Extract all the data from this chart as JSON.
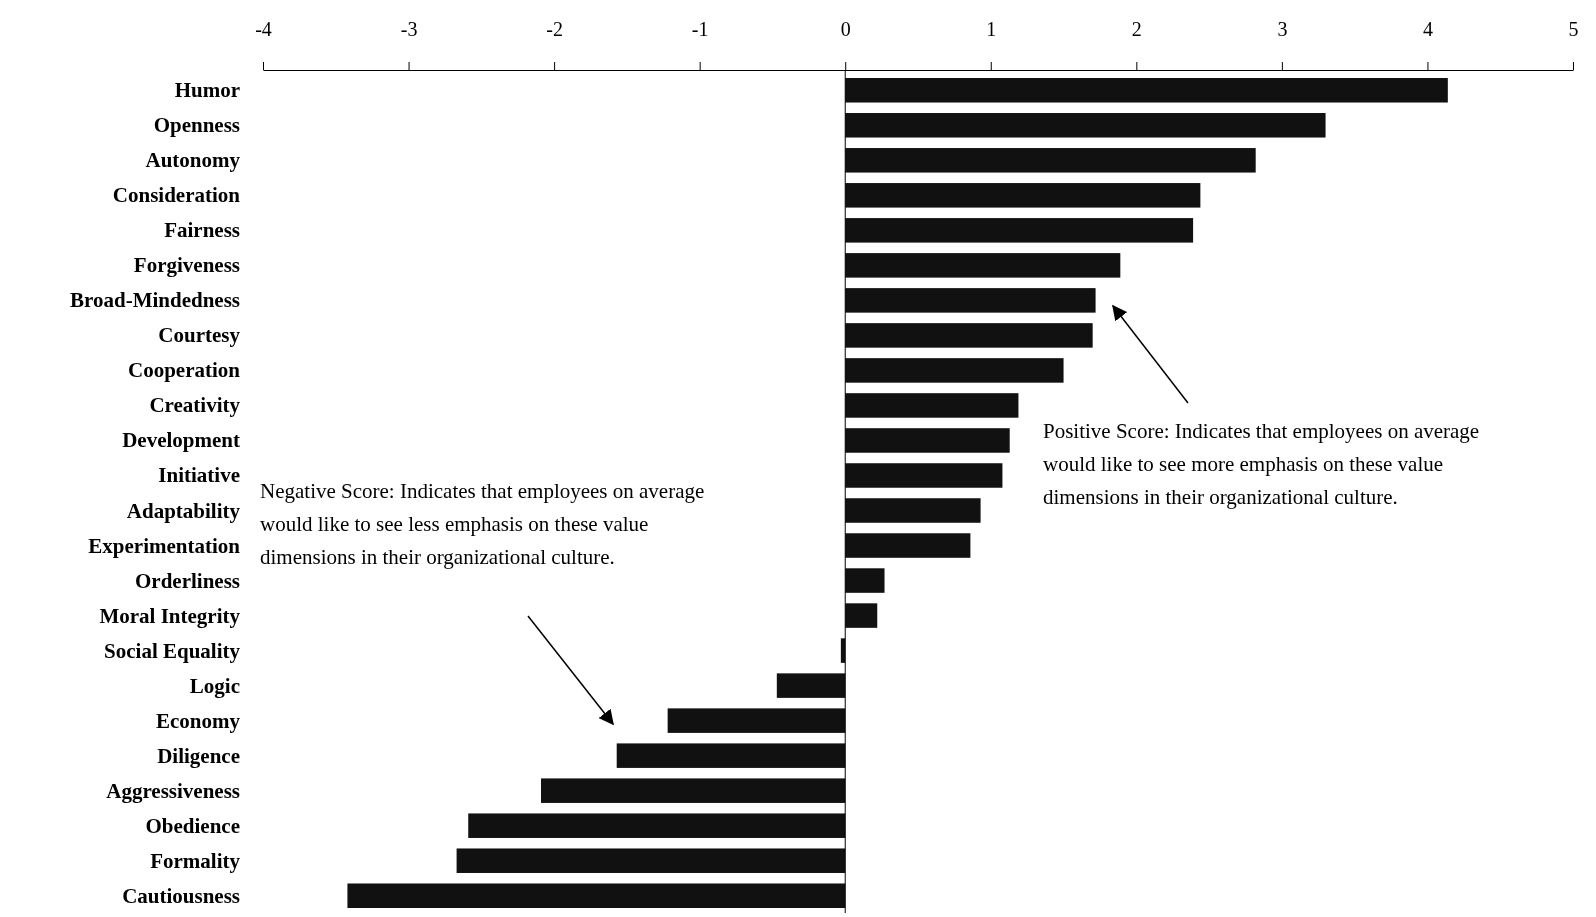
{
  "chart_data": {
    "type": "bar",
    "orientation": "horizontal",
    "categories": [
      "Humor",
      "Openness",
      "Autonomy",
      "Consideration",
      "Fairness",
      "Forgiveness",
      "Broad-Mindedness",
      "Courtesy",
      "Cooperation",
      "Creativity",
      "Development",
      "Initiative",
      "Adaptability",
      "Experimentation",
      "Orderliness",
      "Moral Integrity",
      "Social Equality",
      "Logic",
      "Economy",
      "Diligence",
      "Aggressiveness",
      "Obedience",
      "Formality",
      "Cautiousness"
    ],
    "values": [
      4.14,
      3.3,
      2.82,
      2.44,
      2.39,
      1.89,
      1.72,
      1.7,
      1.5,
      1.19,
      1.13,
      1.08,
      0.93,
      0.86,
      0.27,
      0.22,
      -0.03,
      -0.47,
      -1.22,
      -1.57,
      -2.09,
      -2.59,
      -2.67,
      -3.42
    ],
    "color": "#111111",
    "xlim": [
      -4,
      5
    ],
    "xticks": [
      -4,
      -3,
      -2,
      -1,
      0,
      1,
      2,
      3,
      4,
      5
    ],
    "grid": false,
    "ref_lines": [
      {
        "axis": "x",
        "value": 0
      }
    ],
    "annotations": [
      "Positive Score: Indicates that employees on average would like to see more emphasis on these value dimensions in their organizational culture.",
      "Negative Score: Indicates that employees on average would like to see less emphasis on these value dimensions in their organizational culture."
    ]
  }
}
